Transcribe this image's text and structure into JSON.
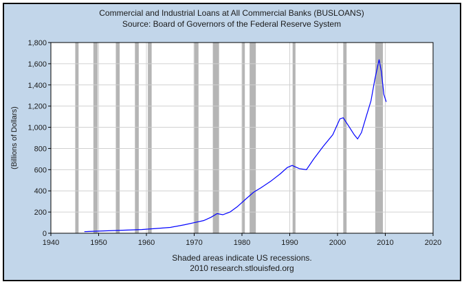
{
  "chart_data": {
    "type": "line",
    "title": "Commercial and Industrial Loans at All Commercial Banks (BUSLOANS)",
    "subtitle": "Source: Board of Governors of the Federal Reserve System",
    "xlabel": "",
    "ylabel": "(Billions of Dollars)",
    "xlim": [
      1940,
      2020
    ],
    "ylim": [
      0,
      1800
    ],
    "x_ticks": [
      "1940",
      "1950",
      "1960",
      "1970",
      "1980",
      "1990",
      "2000",
      "2010",
      "2020"
    ],
    "y_ticks": [
      "0",
      "200",
      "400",
      "600",
      "800",
      "1,000",
      "1,200",
      "1,400",
      "1,600",
      "1,800"
    ],
    "grid": true,
    "recessions": [
      [
        1945.1,
        1945.8
      ],
      [
        1948.9,
        1949.8
      ],
      [
        1953.6,
        1954.4
      ],
      [
        1957.6,
        1958.4
      ],
      [
        1960.3,
        1961.1
      ],
      [
        1969.9,
        1970.9
      ],
      [
        1973.9,
        1975.2
      ],
      [
        1980.0,
        1980.6
      ],
      [
        1981.6,
        1982.9
      ],
      [
        1990.6,
        1991.2
      ],
      [
        2001.2,
        2001.9
      ],
      [
        2007.9,
        2009.5
      ]
    ],
    "series": [
      {
        "color": "#0000ff",
        "x": [
          1947.0,
          1950.0,
          1953.0,
          1956.0,
          1959.0,
          1962.0,
          1965.0,
          1968.0,
          1970.0,
          1972.0,
          1973.5,
          1974.8,
          1976.0,
          1977.5,
          1979.0,
          1980.0,
          1981.0,
          1982.5,
          1984.0,
          1986.0,
          1988.0,
          1989.5,
          1990.5,
          1992.0,
          1993.5,
          1995.0,
          1997.0,
          1999.0,
          2000.5,
          2001.2,
          2002.5,
          2003.5,
          2004.2,
          2005.0,
          2006.0,
          2007.0,
          2007.8,
          2008.7,
          2009.2,
          2009.7,
          2010.2
        ],
        "y": [
          15,
          20,
          25,
          30,
          35,
          45,
          55,
          80,
          100,
          120,
          150,
          185,
          175,
          200,
          250,
          290,
          330,
          390,
          430,
          490,
          560,
          620,
          640,
          610,
          600,
          700,
          820,
          930,
          1080,
          1090,
          1000,
          930,
          890,
          950,
          1100,
          1250,
          1450,
          1640,
          1520,
          1310,
          1240
        ]
      }
    ],
    "footnote_1": "Shaded areas indicate US recessions.",
    "footnote_2": "2010 research.stlouisfed.org"
  }
}
